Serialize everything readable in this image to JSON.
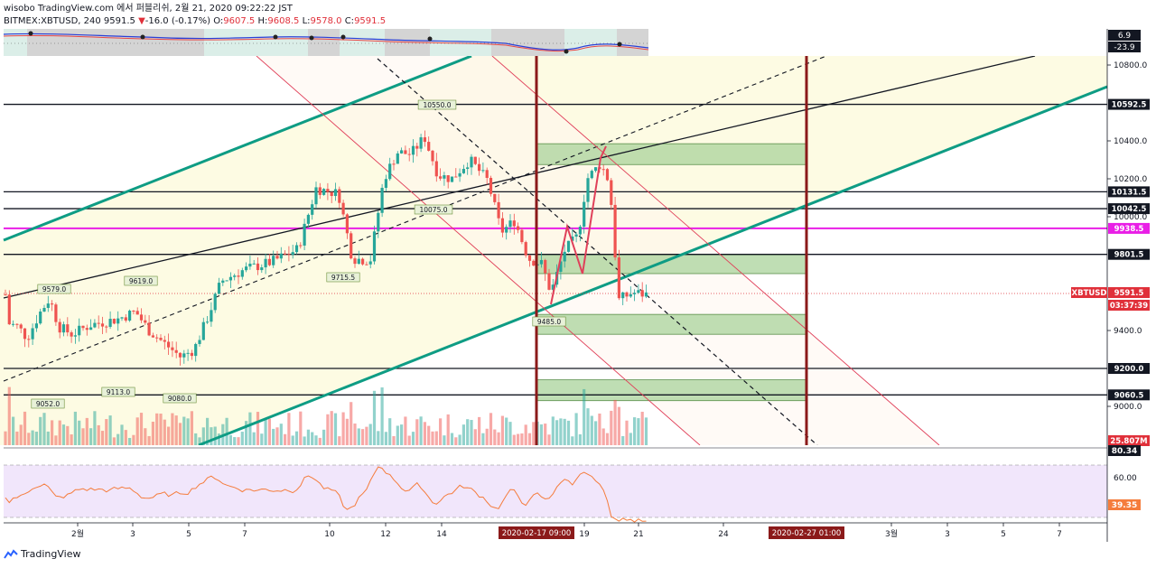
{
  "header": {
    "line1": "wisobo TradingView.com 에서 퍼블리쉬, 2월 21, 2020 09:22:22 JST",
    "symbol": "BITMEX:XBTUSD, 240",
    "last": "9591.5",
    "arrow": "▼",
    "change": "-16.0 (-0.17%)",
    "o_label": "O:",
    "o_val": "9607.5",
    "h_label": "H:",
    "h_val": "9608.5",
    "l_label": "L:",
    "l_val": "9578.0",
    "c_label": "C:",
    "c_val": "9591.5"
  },
  "footer": {
    "brand": "TradingView"
  },
  "colors": {
    "up": "#26a69a",
    "down": "#ef5350",
    "teal_line": "#0e9c84",
    "dark_red": "#8b1a1a",
    "magenta": "#e91ee6",
    "zone_green": "#a9d39b",
    "zone_yellow": "#fdfbe3",
    "rsi_bg": "#f1e6fb",
    "rsi_line": "#f57c3c"
  },
  "chart_data": {
    "type": "candlestick",
    "price_axis": {
      "ticks": [
        "10800.0",
        "10400.0",
        "10200.0",
        "10000.0",
        "9400.0",
        "9000.0"
      ],
      "labels": [
        {
          "text": "10592.5",
          "style": "black"
        },
        {
          "text": "10131.5",
          "style": "black"
        },
        {
          "text": "10042.5",
          "style": "black"
        },
        {
          "text": "9938.5",
          "style": "magenta"
        },
        {
          "text": "9801.5",
          "style": "black"
        },
        {
          "text": "XBTUSD",
          "style": "red"
        },
        {
          "text": "9591.5",
          "style": "red"
        },
        {
          "text": "03:37:39",
          "style": "red"
        },
        {
          "text": "9200.0",
          "style": "black"
        },
        {
          "text": "9060.5",
          "style": "black"
        },
        {
          "text": "25.807M",
          "style": "red"
        }
      ]
    },
    "top_indicator": {
      "values": [
        "6.9",
        "-23.9"
      ]
    },
    "rsi": {
      "ticks": [
        "60.00"
      ],
      "labels": [
        {
          "text": "80.34",
          "style": "black"
        },
        {
          "text": "39.35",
          "style": "orange"
        }
      ]
    },
    "x_axis": {
      "ticks": [
        "2월",
        "3",
        "5",
        "7",
        "10",
        "12",
        "14",
        "19",
        "21",
        "24",
        "3월",
        "3",
        "5",
        "7"
      ],
      "highlight_labels": [
        "2020-02-17  09:00",
        "2020-02-27  01:00"
      ]
    },
    "price_annotations": [
      "10550.0",
      "10075.0",
      "9715.5",
      "9579.0",
      "9619.0",
      "9485.0",
      "9052.0",
      "9113.0",
      "9080.0"
    ],
    "horizontal_levels": [
      10592.5,
      10131.5,
      10042.5,
      9938.5,
      9801.5,
      9200.0,
      9060.5
    ]
  }
}
